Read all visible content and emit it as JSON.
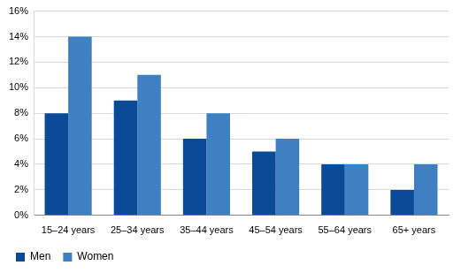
{
  "chart_data": {
    "type": "bar",
    "categories": [
      "15–24 years",
      "25–34 years",
      "35–44 years",
      "45–54 years",
      "55–64 years",
      "65+ years"
    ],
    "series": [
      {
        "name": "Men",
        "color": "#0b4a96",
        "values": [
          8,
          9,
          6,
          5,
          4,
          2
        ]
      },
      {
        "name": "Women",
        "color": "#3f80c3",
        "values": [
          14,
          11,
          8,
          6,
          4,
          4
        ]
      }
    ],
    "ylim": [
      0,
      16
    ],
    "yticks": [
      {
        "value": 0,
        "label": "0%"
      },
      {
        "value": 2,
        "label": "2%"
      },
      {
        "value": 4,
        "label": "4%"
      },
      {
        "value": 6,
        "label": "6%"
      },
      {
        "value": 8,
        "label": "8%"
      },
      {
        "value": 10,
        "label": "10%"
      },
      {
        "value": 12,
        "label": "12%"
      },
      {
        "value": 14,
        "label": "14%"
      },
      {
        "value": 16,
        "label": "16%"
      }
    ],
    "grid": true,
    "legend": "bottom"
  }
}
